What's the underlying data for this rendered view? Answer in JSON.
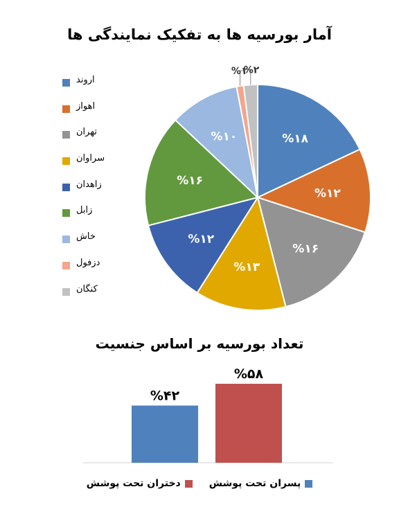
{
  "chart_data": [
    {
      "type": "pie",
      "title": "آمار بورسیه ها به تفکیک نمایندگی ها",
      "legend_position": "left",
      "slices": [
        {
          "label": "اروند",
          "value": 18,
          "display": "%۱۸",
          "color": "#4F81BD"
        },
        {
          "label": "اهواز",
          "value": 12,
          "display": "%۱۲",
          "color": "#D8702C"
        },
        {
          "label": "تهران",
          "value": 16,
          "display": "%۱۶",
          "color": "#939393"
        },
        {
          "label": "سراوان",
          "value": 13,
          "display": "%۱۳",
          "color": "#E1A800"
        },
        {
          "label": "زاهدان",
          "value": 12,
          "display": "%۱۲",
          "color": "#3C62AE"
        },
        {
          "label": "زابل",
          "value": 16,
          "display": "%۱۶",
          "color": "#62993E"
        },
        {
          "label": "خاش",
          "value": 10,
          "display": "%۱۰",
          "color": "#9AB8E0"
        },
        {
          "label": "دزفول",
          "value": 1,
          "display": "%۱",
          "color": "#F4A58B"
        },
        {
          "label": "کنگان",
          "value": 2,
          "display": "%۲",
          "color": "#C1C1C1"
        }
      ]
    },
    {
      "type": "bar",
      "title": "تعداد بورسیه بر اساس جنسیت",
      "legend_position": "bottom",
      "grid": false,
      "ylim": [
        0,
        58
      ],
      "series": [
        {
          "name": "پسران تحت پوشش",
          "value": 42,
          "display": "%۴۲",
          "color": "#4F81BD"
        },
        {
          "name": "دختران تحت پوشش",
          "value": 58,
          "display": "%۵۸",
          "color": "#C0504D"
        }
      ]
    }
  ]
}
